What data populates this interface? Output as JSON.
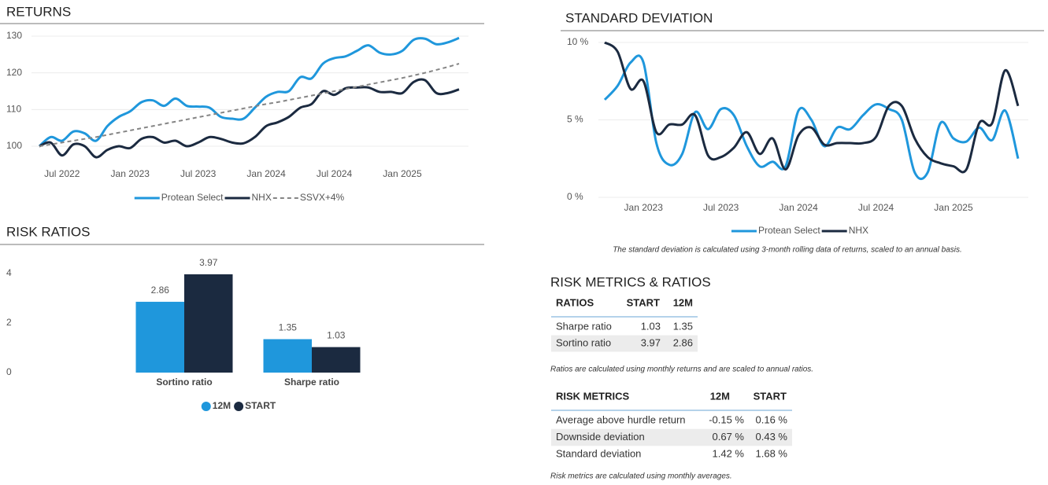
{
  "chart_data": [
    {
      "type": "line",
      "title": "RETURNS",
      "x": [
        "2022-05",
        "2022-06",
        "2022-07",
        "2022-08",
        "2022-09",
        "2022-10",
        "2022-11",
        "2022-12",
        "2023-01",
        "2023-02",
        "2023-03",
        "2023-04",
        "2023-05",
        "2023-06",
        "2023-07",
        "2023-08",
        "2023-09",
        "2023-10",
        "2023-11",
        "2023-12",
        "2024-01",
        "2024-02",
        "2024-03",
        "2024-04",
        "2024-05",
        "2024-06",
        "2024-07",
        "2024-08",
        "2024-09",
        "2024-10",
        "2024-11",
        "2024-12",
        "2025-01",
        "2025-02",
        "2025-03",
        "2025-04",
        "2025-05",
        "2025-06"
      ],
      "xlim": [
        "2022-05",
        "2025-06"
      ],
      "xticks": [
        {
          "value": "2022-07",
          "label": "Jul 2022"
        },
        {
          "value": "2023-01",
          "label": "Jan 2023"
        },
        {
          "value": "2023-07",
          "label": "Jul 2023"
        },
        {
          "value": "2024-01",
          "label": "Jan 2024"
        },
        {
          "value": "2024-07",
          "label": "Jul 2024"
        },
        {
          "value": "2025-01",
          "label": "Jan 2025"
        }
      ],
      "ylim": [
        99,
        131
      ],
      "yticks": [
        100,
        110,
        120,
        130
      ],
      "grid": true,
      "series": [
        {
          "name": "Protean Select",
          "color": "#1f97dc",
          "values": [
            100,
            102.5,
            101.5,
            104,
            103.5,
            101.5,
            105.5,
            108,
            109.5,
            112,
            112.5,
            111,
            113,
            111,
            110.8,
            110.5,
            108,
            107.5,
            107.5,
            110.5,
            113.5,
            114.8,
            115,
            118.8,
            118.5,
            122.5,
            124,
            124.5,
            126,
            127.5,
            125.5,
            125,
            126,
            129,
            129.3,
            127.8,
            128.3,
            129.5
          ]
        },
        {
          "name": "NHX",
          "color": "#1b2a40",
          "values": [
            100,
            101,
            97.5,
            100.5,
            100,
            97,
            99,
            100,
            99.5,
            102,
            102.5,
            101,
            101.5,
            100,
            101,
            102.5,
            102,
            101,
            100.8,
            102.5,
            105.5,
            106.5,
            108,
            110.5,
            111.5,
            115,
            114,
            115.8,
            116,
            116,
            114.8,
            114.8,
            114.5,
            117.5,
            118,
            114.5,
            114.5,
            115.5
          ]
        },
        {
          "name": "SSVX+4%",
          "color": "#858585",
          "line_style": "dashed",
          "values": [
            100,
            100.5,
            101,
            101.5,
            102,
            102.5,
            103.1,
            103.7,
            104.3,
            104.9,
            105.5,
            106.1,
            106.7,
            107.3,
            107.9,
            108.5,
            109.1,
            109.7,
            110.3,
            110.9,
            111.5,
            112,
            112.6,
            113.2,
            113.8,
            114.4,
            115,
            115.6,
            116.2,
            116.8,
            117.4,
            118,
            118.6,
            119.3,
            120,
            120.8,
            121.6,
            122.5
          ]
        }
      ]
    },
    {
      "type": "bar",
      "title": "RISK RATIOS",
      "categories": [
        "Sortino ratio",
        "Sharpe ratio"
      ],
      "ylim": [
        0,
        4
      ],
      "yticks": [
        0,
        2,
        4
      ],
      "grid": false,
      "series": [
        {
          "name": "12M",
          "color": "#1f97dc",
          "values": [
            2.86,
            1.35
          ]
        },
        {
          "name": "START",
          "color": "#1b2a40",
          "values": [
            3.97,
            1.03
          ]
        }
      ]
    },
    {
      "type": "line",
      "title": "STANDARD DEVIATION",
      "x": [
        "2022-10",
        "2022-11",
        "2022-12",
        "2023-01",
        "2023-02",
        "2023-03",
        "2023-04",
        "2023-05",
        "2023-06",
        "2023-07",
        "2023-08",
        "2023-09",
        "2023-10",
        "2023-11",
        "2023-12",
        "2024-01",
        "2024-02",
        "2024-03",
        "2024-04",
        "2024-05",
        "2024-06",
        "2024-07",
        "2024-08",
        "2024-09",
        "2024-10",
        "2024-11",
        "2024-12",
        "2025-01",
        "2025-02",
        "2025-03",
        "2025-04",
        "2025-05",
        "2025-06"
      ],
      "xlim": [
        "2022-10",
        "2025-06"
      ],
      "xticks": [
        {
          "value": "2023-01",
          "label": "Jan 2023"
        },
        {
          "value": "2023-07",
          "label": "Jul 2023"
        },
        {
          "value": "2024-01",
          "label": "Jan 2024"
        },
        {
          "value": "2024-07",
          "label": "Jul 2024"
        },
        {
          "value": "2025-01",
          "label": "Jan 2025"
        }
      ],
      "ylim": [
        0,
        10
      ],
      "yticks": [
        {
          "value": 0,
          "label": "0 %"
        },
        {
          "value": 5,
          "label": "5 %"
        },
        {
          "value": 10,
          "label": "10 %"
        }
      ],
      "grid": true,
      "series": [
        {
          "name": "Protean Select",
          "color": "#1f97dc",
          "values": [
            6.3,
            7.2,
            8.7,
            8.7,
            3.5,
            2.1,
            2.8,
            5.5,
            4.4,
            5.7,
            5.3,
            3.3,
            2.0,
            2.3,
            2.0,
            5.6,
            5.0,
            3.3,
            4.5,
            4.4,
            5.3,
            6.0,
            5.7,
            5.0,
            1.6,
            1.6,
            4.8,
            3.8,
            3.6,
            4.5,
            3.7,
            5.6,
            2.5
          ]
        },
        {
          "name": "NHX",
          "color": "#1b2a40",
          "values": [
            10.0,
            9.4,
            7.0,
            7.5,
            4.2,
            4.7,
            4.7,
            5.3,
            2.7,
            2.6,
            3.2,
            4.2,
            2.8,
            3.8,
            1.8,
            4.0,
            4.5,
            3.4,
            3.5,
            3.5,
            3.5,
            3.9,
            5.9,
            5.9,
            3.8,
            2.6,
            2.2,
            2.0,
            1.8,
            4.8,
            4.8,
            8.2,
            5.9
          ]
        }
      ],
      "note": "The standard deviation is calculated using 3-month rolling data of returns, scaled to an annual basis."
    }
  ],
  "risk_section": {
    "title": "RISK METRICS & RATIOS",
    "ratios_table": {
      "header": [
        "RATIOS",
        "START",
        "12M"
      ],
      "rows": [
        [
          "Sharpe ratio",
          "1.03",
          "1.35"
        ],
        [
          "Sortino ratio",
          "3.97",
          "2.86"
        ]
      ]
    },
    "ratios_note": "Ratios are calculated using monthly returns and are scaled to annual ratios.",
    "metrics_table": {
      "header": [
        "RISK METRICS",
        "12M",
        "START"
      ],
      "rows": [
        [
          "Average above hurdle return",
          "-0.15 %",
          "0.16 %"
        ],
        [
          "Downside deviation",
          "0.67 %",
          "0.43 %"
        ],
        [
          "Standard deviation",
          "1.42 %",
          "1.68 %"
        ]
      ]
    },
    "metrics_note": "Risk metrics are calculated using monthly averages."
  }
}
